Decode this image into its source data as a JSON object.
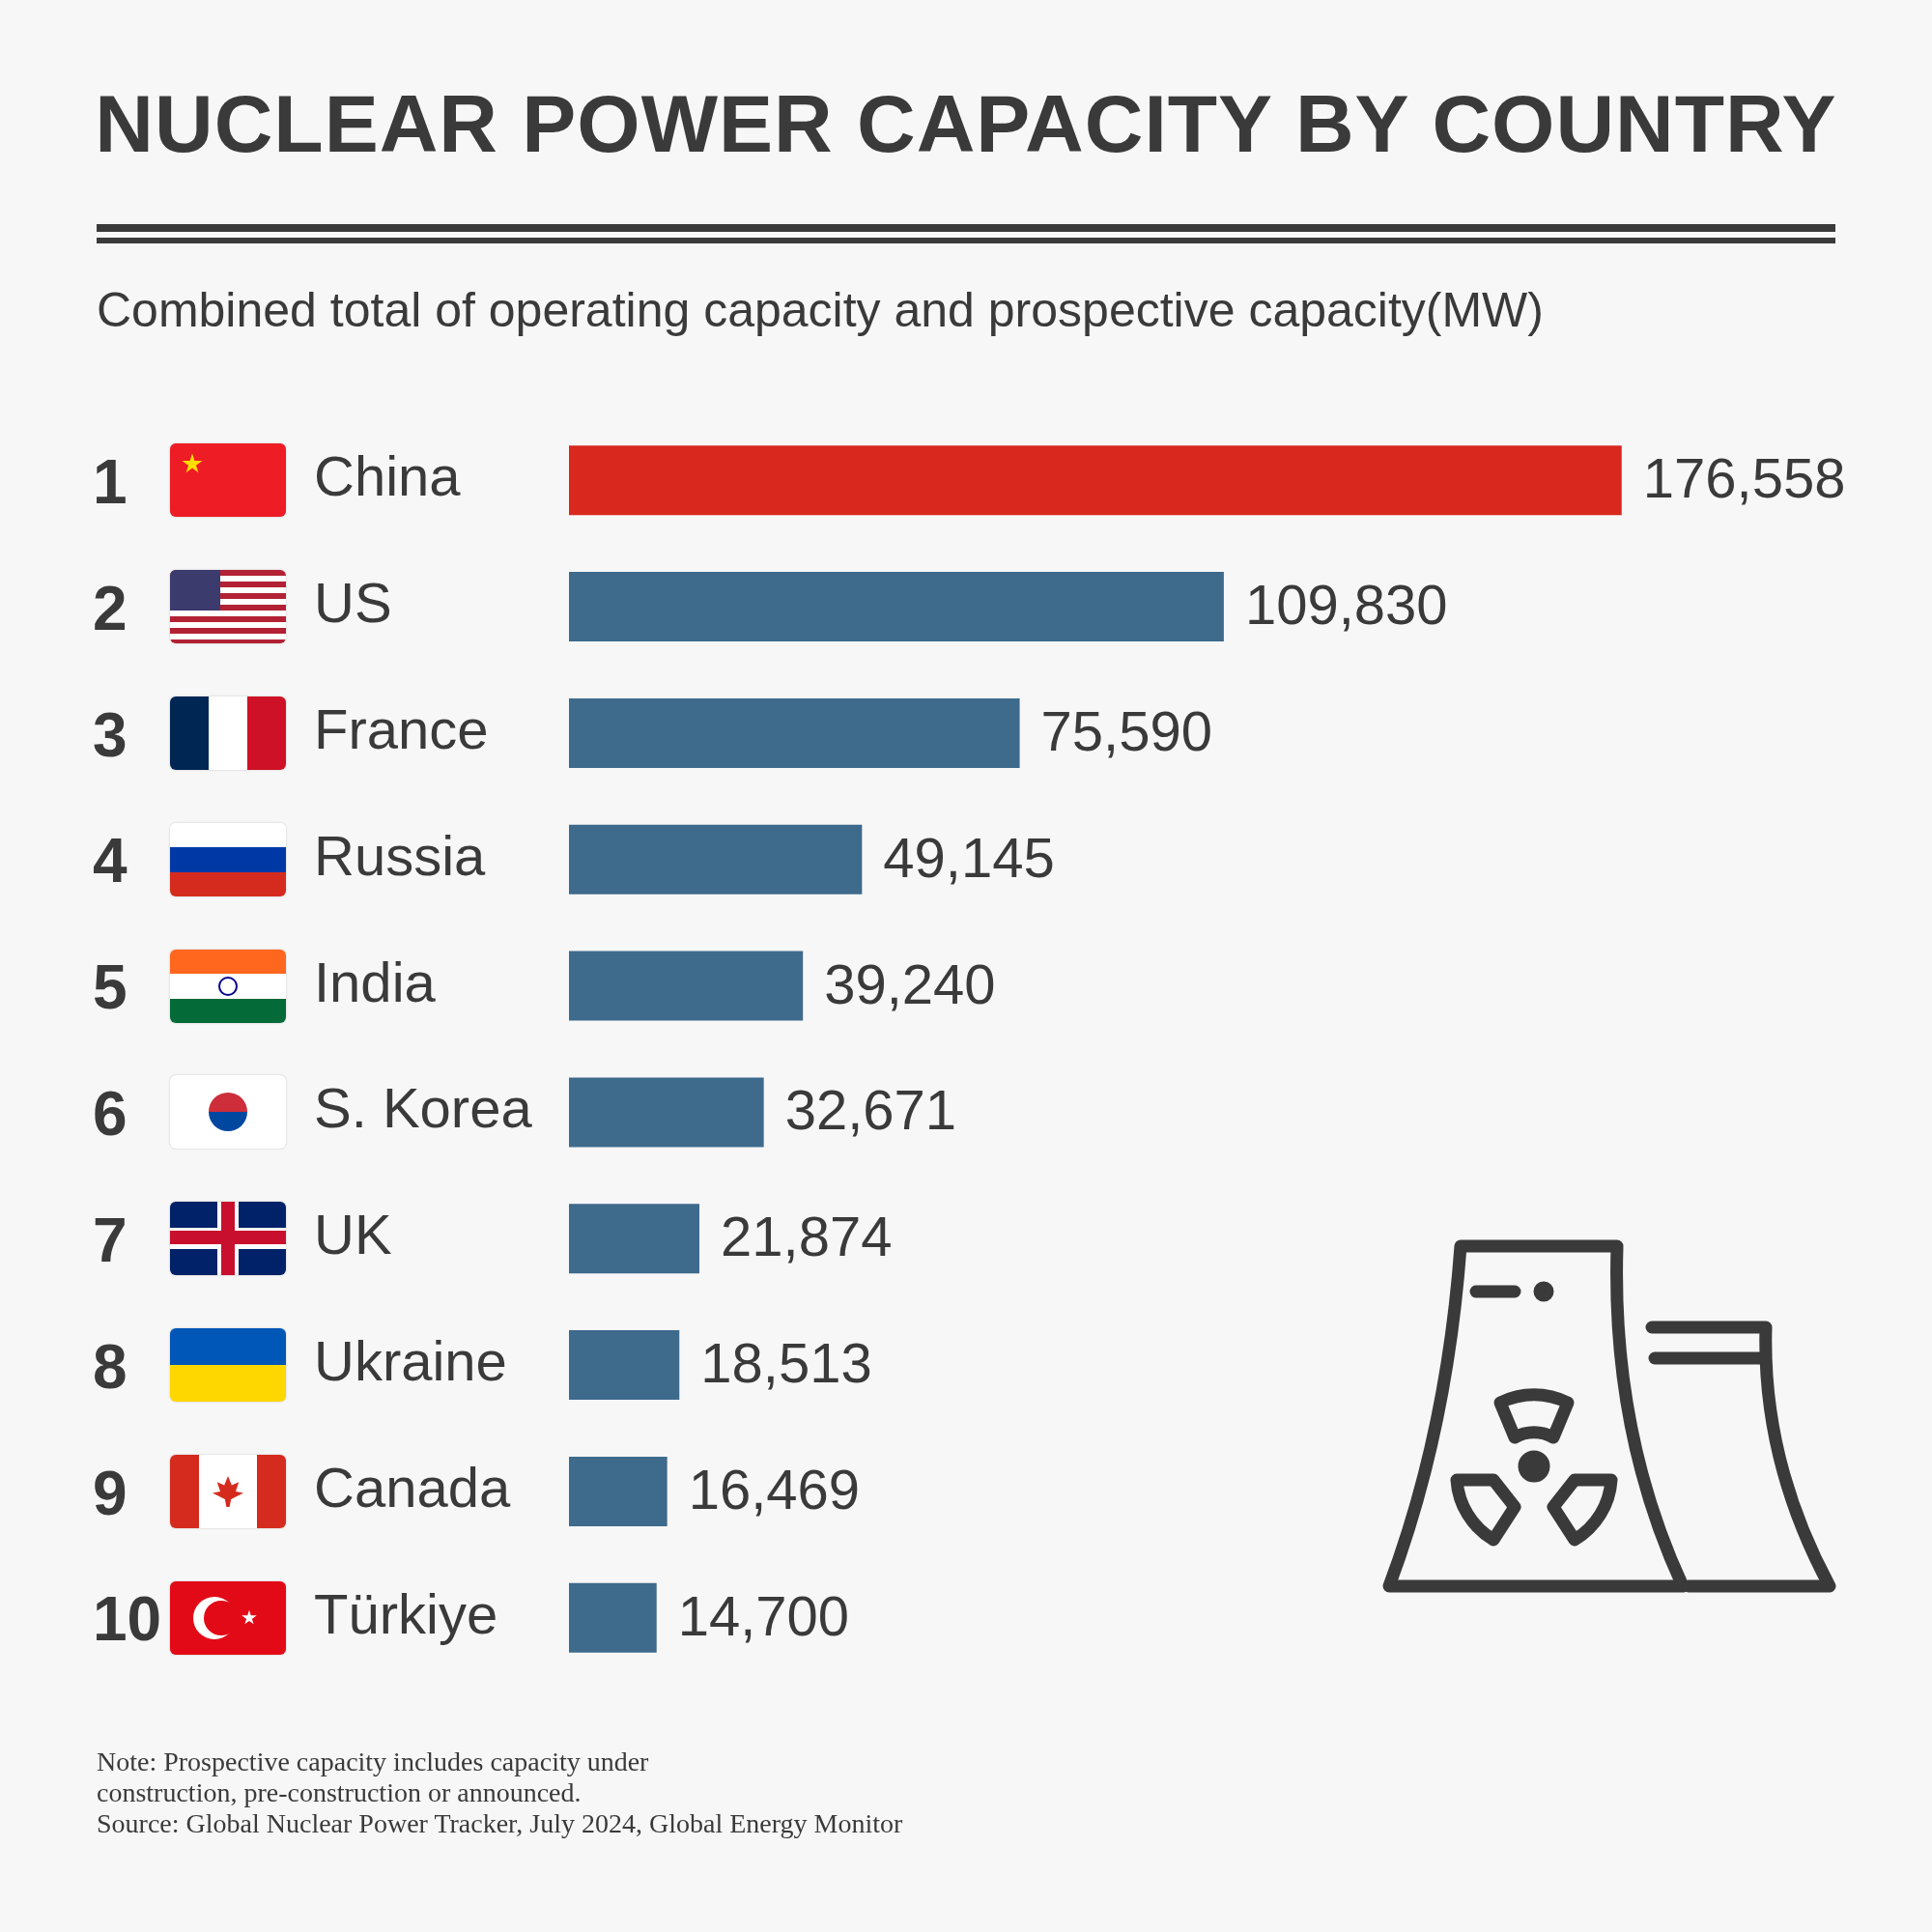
{
  "chart_data": {
    "type": "bar",
    "orientation": "horizontal",
    "title": "NUCLEAR POWER CAPACITY BY COUNTRY",
    "subtitle": "Combined total of operating capacity and prospective capacity(MW)",
    "categories": [
      "China",
      "US",
      "France",
      "Russia",
      "India",
      "S. Korea",
      "UK",
      "Ukraine",
      "Canada",
      "Türkiye"
    ],
    "values": [
      176558,
      109830,
      75590,
      49145,
      39240,
      32671,
      21874,
      18513,
      16469,
      14700
    ],
    "value_labels": [
      "176,558",
      "109,830",
      "75,590",
      "49,145",
      "39,240",
      "32,671",
      "21,874",
      "18,513",
      "16,469",
      "14,700"
    ],
    "colors": [
      "#d9281e",
      "#3e6a8c",
      "#3e6a8c",
      "#3e6a8c",
      "#3e6a8c",
      "#3e6a8c",
      "#3e6a8c",
      "#3e6a8c",
      "#3e6a8c",
      "#3e6a8c"
    ],
    "legend": false,
    "grid": false,
    "tick_labels": "y",
    "annotations": [
      "1",
      "2",
      "3",
      "4",
      "5",
      "6",
      "7",
      "8",
      "9",
      "10",
      "Note: Prospective capacity includes capacity under construction, pre-construction or announced.",
      "Source: Global Nuclear Power Tracker, July 2024, Global Energy Monitor"
    ]
  }
}
